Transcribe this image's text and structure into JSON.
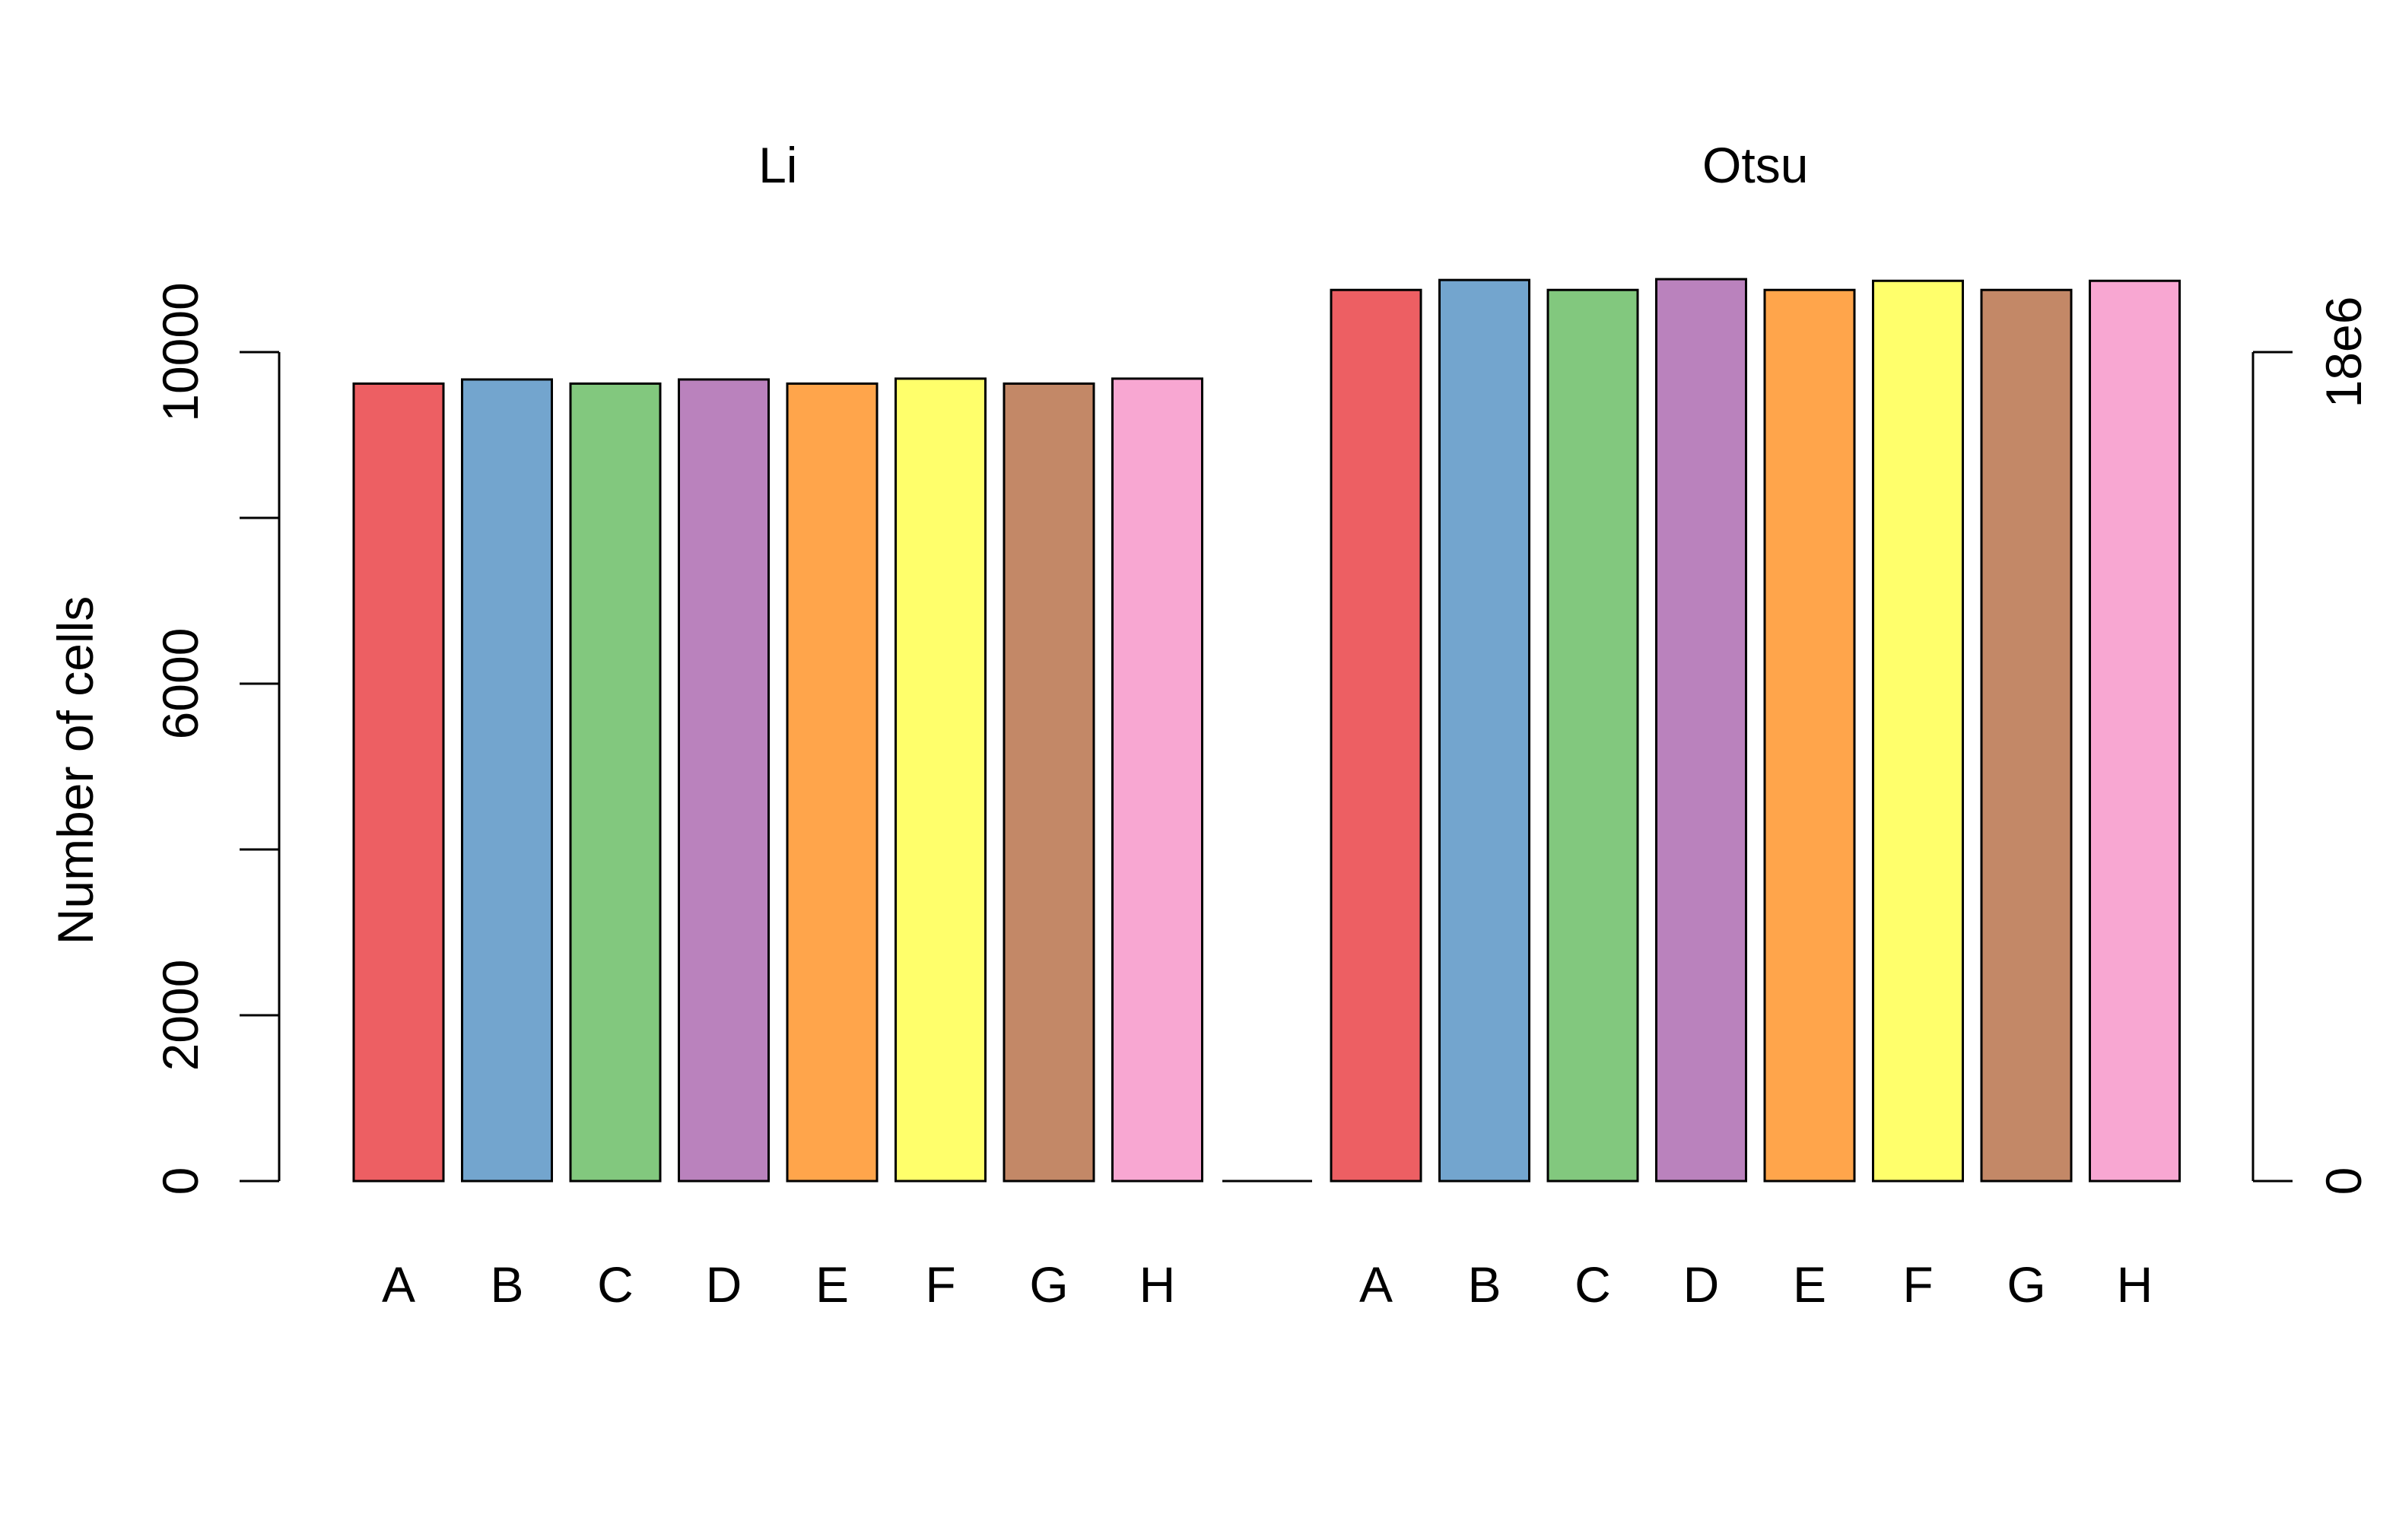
{
  "chart_data": {
    "type": "bar",
    "categories": [
      "A",
      "B",
      "C",
      "D",
      "E",
      "F",
      "G",
      "H"
    ],
    "groups": [
      {
        "name": "Li",
        "values": [
          9620,
          9670,
          9620,
          9670,
          9620,
          9680,
          9620,
          9680
        ]
      },
      {
        "name": "Otsu",
        "values": [
          10750,
          10870,
          10750,
          10880,
          10750,
          10860,
          10750,
          10860
        ]
      }
    ],
    "colors": [
      "#ED5F63",
      "#73A5CE",
      "#82C87E",
      "#BA82BD",
      "#FFA54B",
      "#FFFF6B",
      "#C38867",
      "#F8A7D2"
    ],
    "xlabel": "",
    "ylabel": "Number of cells",
    "ylim": [
      0,
      10000
    ],
    "yticks": [
      0,
      2000,
      4000,
      6000,
      8000,
      10000
    ],
    "ytick_labels": [
      "0",
      "2000",
      "",
      "6000",
      "",
      "10000"
    ],
    "right_axis": {
      "labels": [
        "0",
        "18e6"
      ],
      "values": [
        0,
        10000
      ]
    },
    "grid": false,
    "legend": "none"
  }
}
